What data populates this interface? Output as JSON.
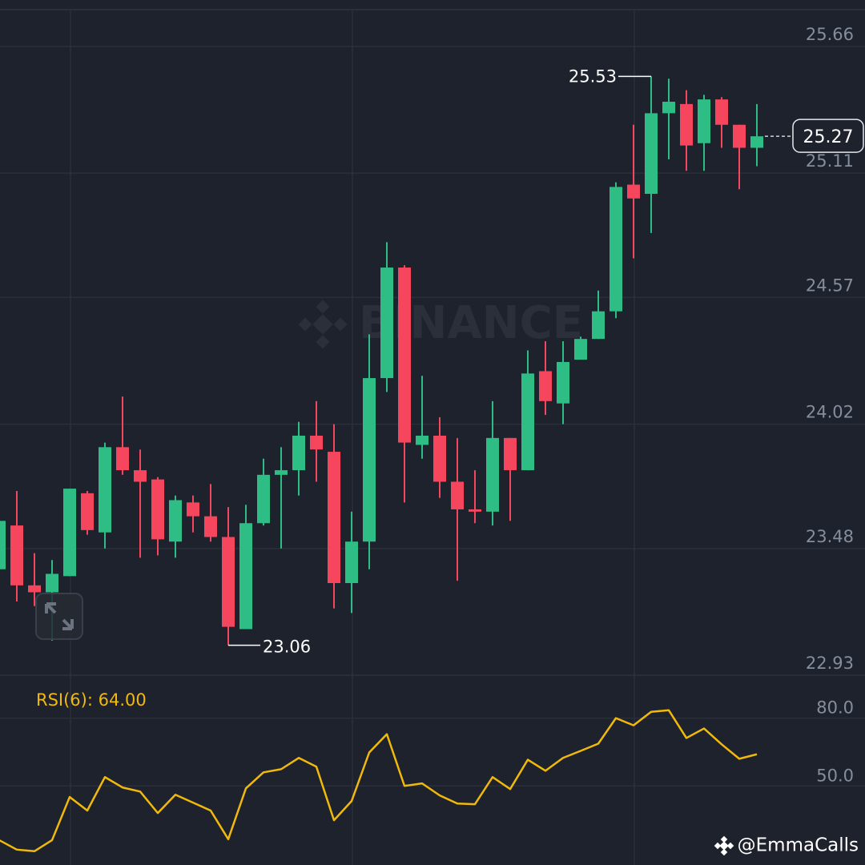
{
  "chart_data": {
    "type": "candlestick",
    "watermark": "BINANCE",
    "credit": "@EmmaCalls",
    "up_color": "#2ebd85",
    "down_color": "#f6465d",
    "grid": true,
    "ylim": [
      22.93,
      25.66
    ],
    "yticks": [
      22.93,
      23.48,
      24.02,
      24.57,
      25.11,
      25.66
    ],
    "open": [
      23.39,
      23.58,
      23.32,
      23.29,
      23.36,
      23.72,
      23.55,
      23.92,
      23.82,
      23.78,
      23.51,
      23.68,
      23.62,
      23.53,
      23.13,
      23.59,
      23.8,
      23.82,
      23.97,
      23.9,
      23.33,
      23.51,
      24.22,
      24.7,
      23.93,
      23.97,
      23.77,
      23.65,
      23.64,
      23.96,
      23.82,
      24.25,
      24.11,
      24.3,
      24.39,
      24.51,
      25.06,
      25.02,
      25.37,
      25.41,
      25.24,
      25.43,
      25.32,
      25.22
    ],
    "high": [
      23.97,
      23.73,
      23.46,
      23.43,
      23.74,
      23.73,
      23.94,
      24.14,
      23.91,
      23.79,
      23.71,
      23.71,
      23.76,
      23.66,
      23.67,
      23.87,
      23.92,
      24.03,
      24.12,
      24.02,
      23.64,
      24.41,
      24.81,
      24.71,
      24.23,
      24.05,
      23.96,
      23.82,
      24.12,
      23.96,
      24.34,
      24.38,
      24.38,
      24.4,
      24.6,
      25.07,
      25.32,
      25.53,
      25.52,
      25.47,
      25.45,
      25.44,
      25.32,
      25.41
    ],
    "low": [
      23.39,
      23.25,
      23.23,
      23.08,
      23.36,
      23.54,
      23.48,
      23.8,
      23.44,
      23.45,
      23.44,
      23.55,
      23.51,
      23.06,
      23.13,
      23.58,
      23.48,
      23.71,
      23.77,
      23.22,
      23.2,
      23.39,
      24.16,
      23.68,
      23.87,
      23.7,
      23.34,
      23.59,
      23.58,
      23.6,
      23.82,
      24.06,
      24.02,
      24.3,
      24.39,
      24.48,
      24.74,
      24.85,
      25.17,
      25.12,
      25.12,
      25.22,
      25.04,
      25.14
    ],
    "close": [
      23.6,
      23.32,
      23.29,
      23.37,
      23.74,
      23.56,
      23.92,
      23.82,
      23.77,
      23.52,
      23.69,
      23.62,
      23.53,
      23.14,
      23.59,
      23.8,
      23.82,
      23.97,
      23.91,
      23.33,
      23.51,
      24.22,
      24.7,
      23.94,
      23.97,
      23.77,
      23.65,
      23.64,
      23.96,
      23.82,
      24.24,
      24.12,
      24.29,
      24.39,
      24.51,
      25.05,
      25.0,
      25.37,
      25.42,
      25.23,
      25.43,
      25.32,
      25.22,
      25.27
    ],
    "high_label": 25.53,
    "low_label": 23.06,
    "last_price": 25.27,
    "rsi": {
      "label": "RSI(6): 64.00",
      "color": "#f0b90b",
      "ylim": [
        15,
        99
      ],
      "yticks": [
        {
          "value": 50,
          "label": "50.0"
        },
        {
          "value": 80,
          "label": "80.0"
        }
      ],
      "values": [
        26.0,
        21.8,
        21.1,
        26.0,
        45.1,
        39.1,
        53.9,
        49.3,
        47.5,
        38.0,
        46.1,
        42.6,
        39.1,
        26.4,
        48.9,
        56.0,
        57.4,
        62.4,
        58.5,
        34.8,
        43.3,
        64.8,
        72.9,
        50.0,
        51.1,
        45.8,
        42.2,
        41.9,
        53.9,
        48.6,
        61.6,
        56.7,
        62.4,
        65.5,
        68.7,
        80.0,
        76.8,
        82.8,
        83.5,
        71.2,
        75.4,
        68.4,
        62.0,
        64.0
      ]
    }
  }
}
